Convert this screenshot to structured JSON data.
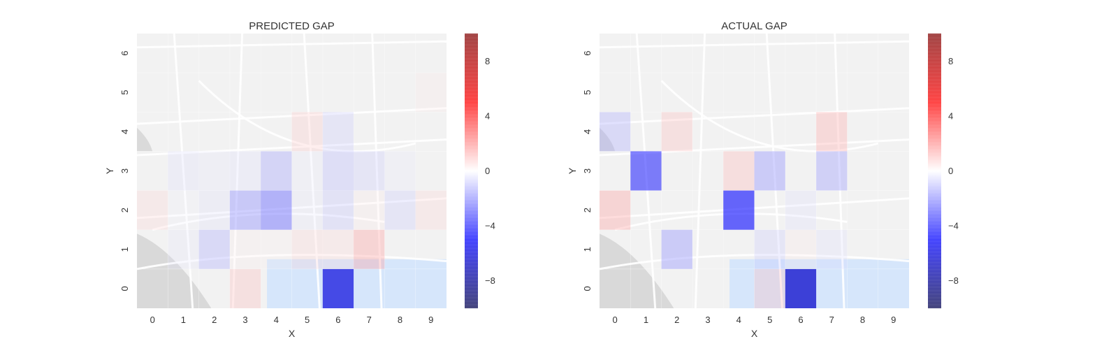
{
  "chart_data": [
    {
      "type": "heatmap",
      "title": "PREDICTED GAP",
      "xlabel": "X",
      "ylabel": "Y",
      "x_ticks": [
        "0",
        "1",
        "2",
        "3",
        "4",
        "5",
        "6",
        "7",
        "8",
        "9"
      ],
      "y_ticks": [
        "0",
        "1",
        "2",
        "3",
        "4",
        "5",
        "6"
      ],
      "colorbar_ticks": [
        "8",
        "4",
        "0",
        "−4",
        "−8"
      ],
      "colorbar_tick_values": [
        8,
        4,
        0,
        -4,
        -8
      ],
      "vlim": [
        -10,
        10
      ],
      "colormap": "seismic",
      "background": "map",
      "cells": [
        {
          "x": 0,
          "y": 2,
          "v": 1.0
        },
        {
          "x": 1,
          "y": 1,
          "v": -0.6
        },
        {
          "x": 1,
          "y": 2,
          "v": -0.3
        },
        {
          "x": 1,
          "y": 3,
          "v": -0.8
        },
        {
          "x": 2,
          "y": 1,
          "v": -1.8
        },
        {
          "x": 2,
          "y": 2,
          "v": -0.7
        },
        {
          "x": 2,
          "y": 3,
          "v": -0.6
        },
        {
          "x": 3,
          "y": 0,
          "v": 1.5
        },
        {
          "x": 3,
          "y": 1,
          "v": 0.4
        },
        {
          "x": 3,
          "y": 2,
          "v": -2.5
        },
        {
          "x": 3,
          "y": 3,
          "v": -0.8
        },
        {
          "x": 4,
          "y": 1,
          "v": 0.3
        },
        {
          "x": 4,
          "y": 2,
          "v": -3.2
        },
        {
          "x": 4,
          "y": 3,
          "v": -2.0
        },
        {
          "x": 5,
          "y": 1,
          "v": 1.0
        },
        {
          "x": 5,
          "y": 2,
          "v": -0.6
        },
        {
          "x": 5,
          "y": 3,
          "v": -0.5
        },
        {
          "x": 5,
          "y": 4,
          "v": 1.2
        },
        {
          "x": 6,
          "y": 0,
          "v": -6.0
        },
        {
          "x": 6,
          "y": 1,
          "v": 0.9
        },
        {
          "x": 6,
          "y": 2,
          "v": -1.4
        },
        {
          "x": 6,
          "y": 3,
          "v": -1.6
        },
        {
          "x": 6,
          "y": 4,
          "v": -1.2
        },
        {
          "x": 7,
          "y": 1,
          "v": 2.0
        },
        {
          "x": 7,
          "y": 2,
          "v": 0.5
        },
        {
          "x": 7,
          "y": 3,
          "v": -1.2
        },
        {
          "x": 8,
          "y": 2,
          "v": -1.2
        },
        {
          "x": 8,
          "y": 3,
          "v": -0.5
        },
        {
          "x": 9,
          "y": 2,
          "v": 1.0
        },
        {
          "x": 9,
          "y": 5,
          "v": 0.5
        }
      ]
    },
    {
      "type": "heatmap",
      "title": "ACTUAL GAP",
      "xlabel": "X",
      "ylabel": "Y",
      "x_ticks": [
        "0",
        "1",
        "2",
        "3",
        "4",
        "5",
        "6",
        "7",
        "8",
        "9"
      ],
      "y_ticks": [
        "0",
        "1",
        "2",
        "3",
        "4",
        "5",
        "6"
      ],
      "colorbar_ticks": [
        "8",
        "4",
        "0",
        "−4",
        "−8"
      ],
      "colorbar_tick_values": [
        8,
        4,
        0,
        -4,
        -8
      ],
      "vlim": [
        -10,
        10
      ],
      "colormap": "seismic",
      "background": "map",
      "cells": [
        {
          "x": 0,
          "y": 2,
          "v": 2.0
        },
        {
          "x": 0,
          "y": 4,
          "v": -1.8
        },
        {
          "x": 1,
          "y": 3,
          "v": -4.5
        },
        {
          "x": 2,
          "y": 1,
          "v": -2.4
        },
        {
          "x": 2,
          "y": 4,
          "v": 1.5
        },
        {
          "x": 4,
          "y": 2,
          "v": -5.0
        },
        {
          "x": 4,
          "y": 3,
          "v": 1.6
        },
        {
          "x": 5,
          "y": 0,
          "v": 1.5
        },
        {
          "x": 5,
          "y": 1,
          "v": -1.2
        },
        {
          "x": 5,
          "y": 3,
          "v": -2.4
        },
        {
          "x": 6,
          "y": 0,
          "v": -6.5
        },
        {
          "x": 6,
          "y": 1,
          "v": 0.5
        },
        {
          "x": 6,
          "y": 2,
          "v": -0.8
        },
        {
          "x": 7,
          "y": 1,
          "v": -0.8
        },
        {
          "x": 7,
          "y": 3,
          "v": -2.2
        },
        {
          "x": 7,
          "y": 4,
          "v": 1.8
        }
      ]
    }
  ]
}
